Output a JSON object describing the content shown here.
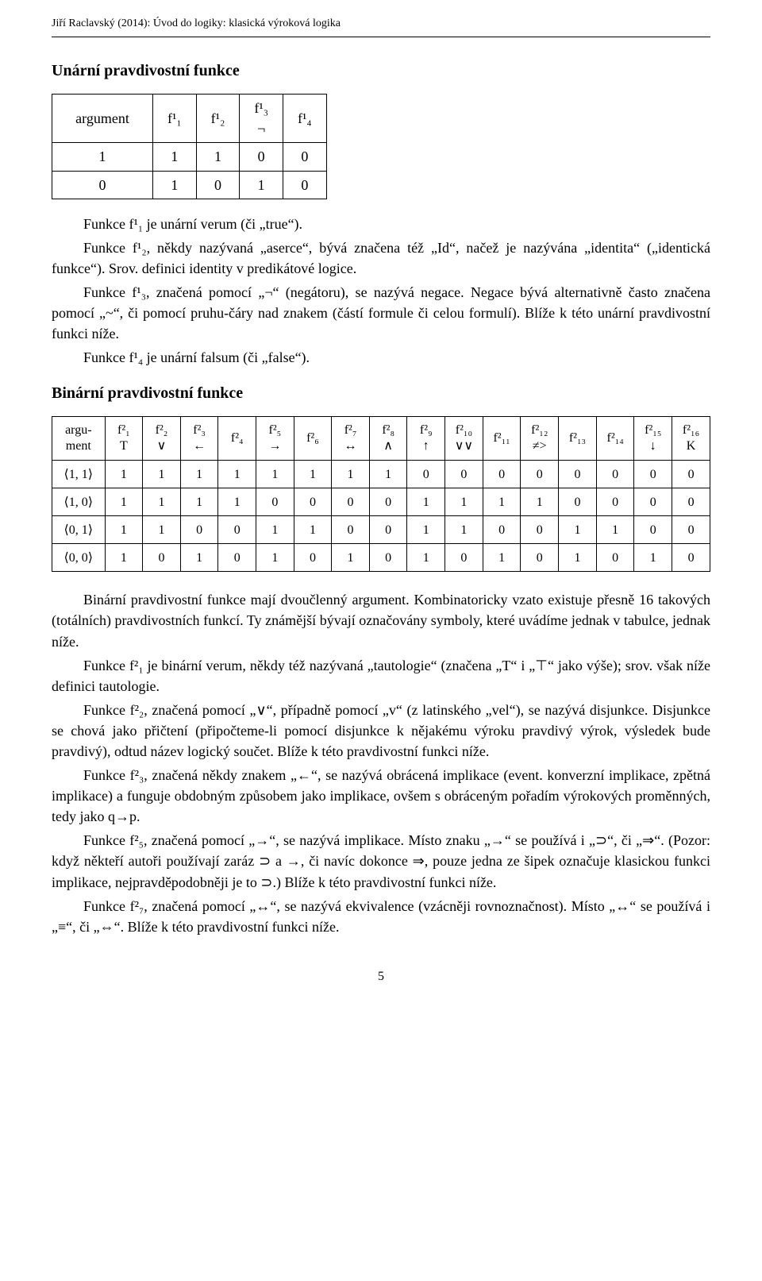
{
  "runhead": "Jiří Raclavský (2014): Úvod do logiky: klasická výroková logika",
  "sections": {
    "unary_title": "Unární pravdivostní funkce",
    "binary_title": "Binární pravdivostní funkce"
  },
  "unary_table": {
    "headers": [
      "argument",
      "f¹₁",
      "f¹₂",
      "f¹₃\n¬",
      "f¹₄"
    ],
    "rows": [
      [
        "1",
        "1",
        "1",
        "0",
        "0"
      ],
      [
        "0",
        "1",
        "0",
        "1",
        "0"
      ]
    ]
  },
  "paras_unary": {
    "p1": "Funkce f¹₁ je unární verum (či „true“).",
    "p2": "Funkce f¹₂, někdy nazývaná „aserce“, bývá značena též „Id“, načež je nazývána „identita“ („identická funkce“). Srov. definici identity v predikátové logice.",
    "p3": "Funkce f¹₃, značená pomocí „¬“ (negátoru), se nazývá negace. Negace bývá alternativně často značena pomocí „~“, či pomocí pruhu-čáry nad znakem (částí formule či celou formulí). Blíže k této unární pravdivostní funkci níže.",
    "p4": "Funkce f¹₄ je unární falsum (či „false“)."
  },
  "binary_table": {
    "headers": [
      "argu-\nment",
      "f²₁\nT",
      "f²₂\n∨",
      "f²₃\n←",
      "f²₄",
      "f²₅\n→",
      "f²₆",
      "f²₇\n↔",
      "f²₈\n∧",
      "f²₉\n↑",
      "f²₁₀\n∨∨",
      "f²₁₁",
      "f²₁₂\n≠>",
      "f²₁₃",
      "f²₁₄",
      "f²₁₅\n↓",
      "f²₁₆\nK"
    ],
    "rows": [
      [
        "⟨1, 1⟩",
        "1",
        "1",
        "1",
        "1",
        "1",
        "1",
        "1",
        "1",
        "0",
        "0",
        "0",
        "0",
        "0",
        "0",
        "0",
        "0"
      ],
      [
        "⟨1, 0⟩",
        "1",
        "1",
        "1",
        "1",
        "0",
        "0",
        "0",
        "0",
        "1",
        "1",
        "1",
        "1",
        "0",
        "0",
        "0",
        "0"
      ],
      [
        "⟨0, 1⟩",
        "1",
        "1",
        "0",
        "0",
        "1",
        "1",
        "0",
        "0",
        "1",
        "1",
        "0",
        "0",
        "1",
        "1",
        "0",
        "0"
      ],
      [
        "⟨0, 0⟩",
        "1",
        "0",
        "1",
        "0",
        "1",
        "0",
        "1",
        "0",
        "1",
        "0",
        "1",
        "0",
        "1",
        "0",
        "1",
        "0"
      ]
    ]
  },
  "paras_binary": {
    "p1": "Binární pravdivostní funkce mají dvoučlenný argument. Kombinatoricky vzato existuje přesně 16 takových (totálních) pravdivostních funkcí. Ty známější bývají označovány symboly, které uvádíme jednak v tabulce, jednak níže.",
    "p2": "Funkce f²₁ je binární verum, někdy též nazývaná „tautologie“ (značena „T“ i „⊤“ jako výše); srov. však níže definici tautologie.",
    "p3": "Funkce f²₂, značená pomocí „∨“, případně pomocí „v“ (z latinského „vel“), se nazývá disjunkce. Disjunkce se chová jako přičtení (připočteme-li pomocí disjunkce k nějakému výroku pravdivý výrok, výsledek bude pravdivý), odtud název logický součet. Blíže k této pravdivostní funkci níže.",
    "p4": "Funkce f²₃, značená někdy znakem „←“, se nazývá obrácená implikace (event. konverzní implikace, zpětná implikace) a funguje obdobným způsobem jako implikace, ovšem s obráceným pořadím výrokových proměnných, tedy jako q→p.",
    "p5": "Funkce f²₅, značená pomocí „→“, se nazývá implikace. Místo znaku „→“ se používá i „⊃“, či „⇒“. (Pozor: když někteří autoři používají zaráz ⊃ a →, či navíc dokonce ⇒, pouze jedna ze šipek označuje klasickou funkci implikace, nejpravděpodobněji je to ⊃.) Blíže k této pravdivostní funkci níže.",
    "p6": "Funkce f²₇, značená pomocí „↔“, se nazývá ekvivalence (vzácněji rovnoznačnost). Místo „↔“ se používá i „≡“, či „⇔“. Blíže k této pravdivostní funkci níže."
  },
  "pagenum": "5"
}
